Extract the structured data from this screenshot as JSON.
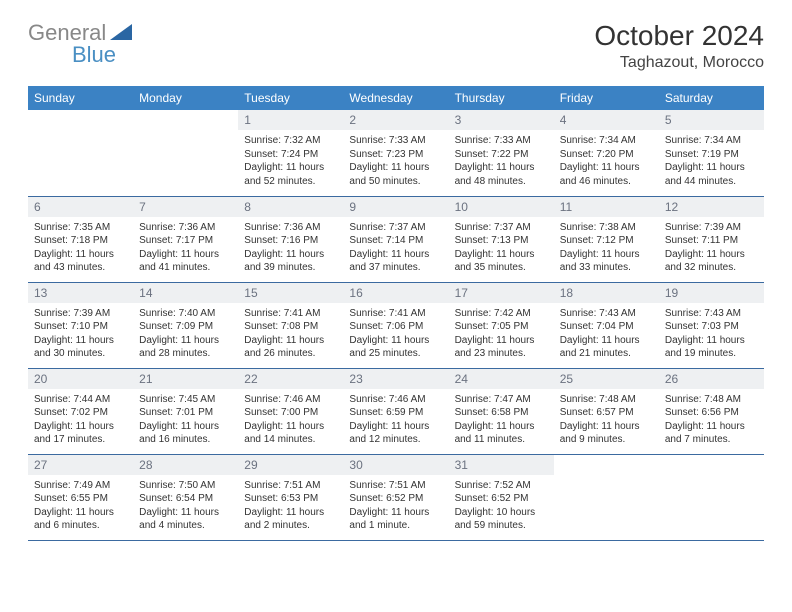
{
  "logo": {
    "part1": "General",
    "part2": "Blue"
  },
  "title": "October 2024",
  "subtitle": "Taghazout, Morocco",
  "colors": {
    "header_bg": "#3b82c4",
    "header_text": "#ffffff",
    "daynum_bg": "#eef0f2",
    "daynum_text": "#6b7280",
    "row_divider": "#3b6aa0",
    "logo_gray": "#888888",
    "logo_blue": "#4a8fc3",
    "logo_triangle": "#2a66a3"
  },
  "dayHeaders": [
    "Sunday",
    "Monday",
    "Tuesday",
    "Wednesday",
    "Thursday",
    "Friday",
    "Saturday"
  ],
  "weeks": [
    [
      {
        "n": "",
        "l": []
      },
      {
        "n": "",
        "l": []
      },
      {
        "n": "1",
        "l": [
          "Sunrise: 7:32 AM",
          "Sunset: 7:24 PM",
          "Daylight: 11 hours",
          "and 52 minutes."
        ]
      },
      {
        "n": "2",
        "l": [
          "Sunrise: 7:33 AM",
          "Sunset: 7:23 PM",
          "Daylight: 11 hours",
          "and 50 minutes."
        ]
      },
      {
        "n": "3",
        "l": [
          "Sunrise: 7:33 AM",
          "Sunset: 7:22 PM",
          "Daylight: 11 hours",
          "and 48 minutes."
        ]
      },
      {
        "n": "4",
        "l": [
          "Sunrise: 7:34 AM",
          "Sunset: 7:20 PM",
          "Daylight: 11 hours",
          "and 46 minutes."
        ]
      },
      {
        "n": "5",
        "l": [
          "Sunrise: 7:34 AM",
          "Sunset: 7:19 PM",
          "Daylight: 11 hours",
          "and 44 minutes."
        ]
      }
    ],
    [
      {
        "n": "6",
        "l": [
          "Sunrise: 7:35 AM",
          "Sunset: 7:18 PM",
          "Daylight: 11 hours",
          "and 43 minutes."
        ]
      },
      {
        "n": "7",
        "l": [
          "Sunrise: 7:36 AM",
          "Sunset: 7:17 PM",
          "Daylight: 11 hours",
          "and 41 minutes."
        ]
      },
      {
        "n": "8",
        "l": [
          "Sunrise: 7:36 AM",
          "Sunset: 7:16 PM",
          "Daylight: 11 hours",
          "and 39 minutes."
        ]
      },
      {
        "n": "9",
        "l": [
          "Sunrise: 7:37 AM",
          "Sunset: 7:14 PM",
          "Daylight: 11 hours",
          "and 37 minutes."
        ]
      },
      {
        "n": "10",
        "l": [
          "Sunrise: 7:37 AM",
          "Sunset: 7:13 PM",
          "Daylight: 11 hours",
          "and 35 minutes."
        ]
      },
      {
        "n": "11",
        "l": [
          "Sunrise: 7:38 AM",
          "Sunset: 7:12 PM",
          "Daylight: 11 hours",
          "and 33 minutes."
        ]
      },
      {
        "n": "12",
        "l": [
          "Sunrise: 7:39 AM",
          "Sunset: 7:11 PM",
          "Daylight: 11 hours",
          "and 32 minutes."
        ]
      }
    ],
    [
      {
        "n": "13",
        "l": [
          "Sunrise: 7:39 AM",
          "Sunset: 7:10 PM",
          "Daylight: 11 hours",
          "and 30 minutes."
        ]
      },
      {
        "n": "14",
        "l": [
          "Sunrise: 7:40 AM",
          "Sunset: 7:09 PM",
          "Daylight: 11 hours",
          "and 28 minutes."
        ]
      },
      {
        "n": "15",
        "l": [
          "Sunrise: 7:41 AM",
          "Sunset: 7:08 PM",
          "Daylight: 11 hours",
          "and 26 minutes."
        ]
      },
      {
        "n": "16",
        "l": [
          "Sunrise: 7:41 AM",
          "Sunset: 7:06 PM",
          "Daylight: 11 hours",
          "and 25 minutes."
        ]
      },
      {
        "n": "17",
        "l": [
          "Sunrise: 7:42 AM",
          "Sunset: 7:05 PM",
          "Daylight: 11 hours",
          "and 23 minutes."
        ]
      },
      {
        "n": "18",
        "l": [
          "Sunrise: 7:43 AM",
          "Sunset: 7:04 PM",
          "Daylight: 11 hours",
          "and 21 minutes."
        ]
      },
      {
        "n": "19",
        "l": [
          "Sunrise: 7:43 AM",
          "Sunset: 7:03 PM",
          "Daylight: 11 hours",
          "and 19 minutes."
        ]
      }
    ],
    [
      {
        "n": "20",
        "l": [
          "Sunrise: 7:44 AM",
          "Sunset: 7:02 PM",
          "Daylight: 11 hours",
          "and 17 minutes."
        ]
      },
      {
        "n": "21",
        "l": [
          "Sunrise: 7:45 AM",
          "Sunset: 7:01 PM",
          "Daylight: 11 hours",
          "and 16 minutes."
        ]
      },
      {
        "n": "22",
        "l": [
          "Sunrise: 7:46 AM",
          "Sunset: 7:00 PM",
          "Daylight: 11 hours",
          "and 14 minutes."
        ]
      },
      {
        "n": "23",
        "l": [
          "Sunrise: 7:46 AM",
          "Sunset: 6:59 PM",
          "Daylight: 11 hours",
          "and 12 minutes."
        ]
      },
      {
        "n": "24",
        "l": [
          "Sunrise: 7:47 AM",
          "Sunset: 6:58 PM",
          "Daylight: 11 hours",
          "and 11 minutes."
        ]
      },
      {
        "n": "25",
        "l": [
          "Sunrise: 7:48 AM",
          "Sunset: 6:57 PM",
          "Daylight: 11 hours",
          "and 9 minutes."
        ]
      },
      {
        "n": "26",
        "l": [
          "Sunrise: 7:48 AM",
          "Sunset: 6:56 PM",
          "Daylight: 11 hours",
          "and 7 minutes."
        ]
      }
    ],
    [
      {
        "n": "27",
        "l": [
          "Sunrise: 7:49 AM",
          "Sunset: 6:55 PM",
          "Daylight: 11 hours",
          "and 6 minutes."
        ]
      },
      {
        "n": "28",
        "l": [
          "Sunrise: 7:50 AM",
          "Sunset: 6:54 PM",
          "Daylight: 11 hours",
          "and 4 minutes."
        ]
      },
      {
        "n": "29",
        "l": [
          "Sunrise: 7:51 AM",
          "Sunset: 6:53 PM",
          "Daylight: 11 hours",
          "and 2 minutes."
        ]
      },
      {
        "n": "30",
        "l": [
          "Sunrise: 7:51 AM",
          "Sunset: 6:52 PM",
          "Daylight: 11 hours",
          "and 1 minute."
        ]
      },
      {
        "n": "31",
        "l": [
          "Sunrise: 7:52 AM",
          "Sunset: 6:52 PM",
          "Daylight: 10 hours",
          "and 59 minutes."
        ]
      },
      {
        "n": "",
        "l": []
      },
      {
        "n": "",
        "l": []
      }
    ]
  ]
}
